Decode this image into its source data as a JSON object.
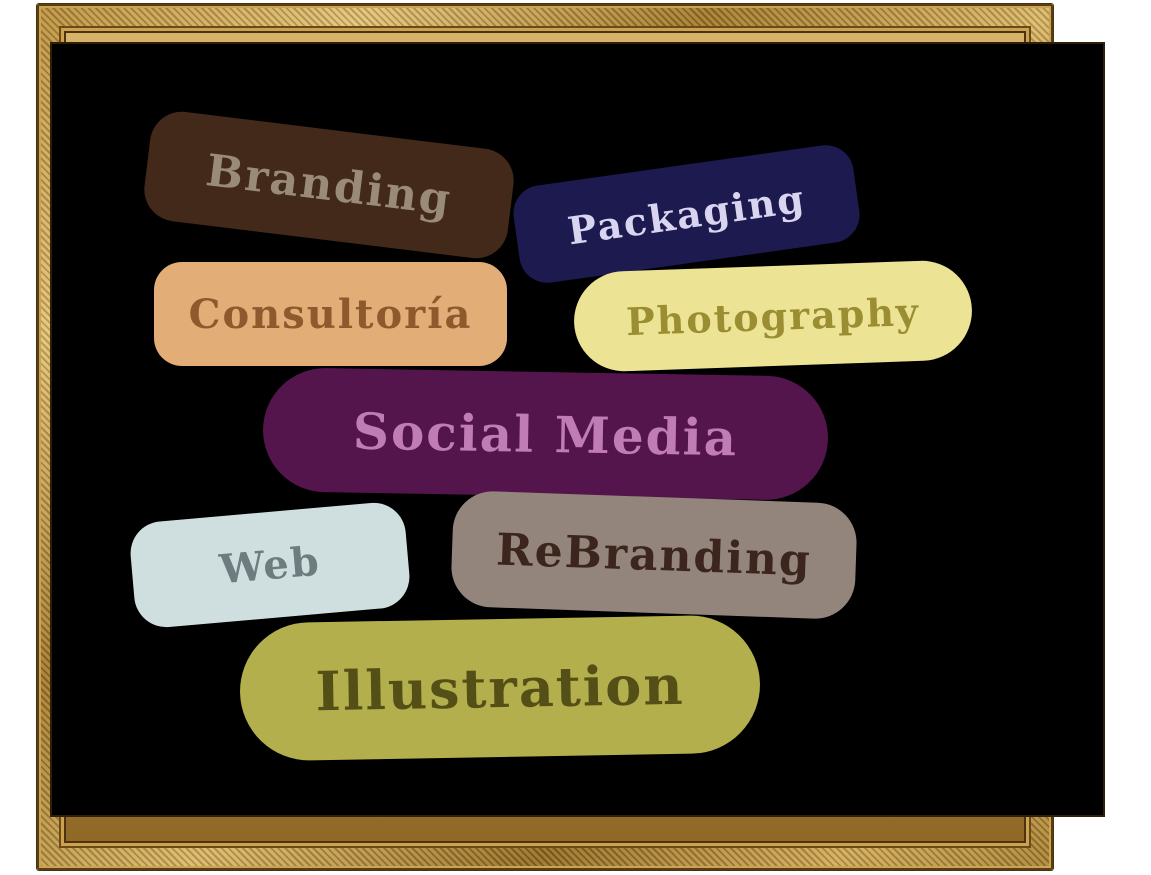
{
  "tags": {
    "branding": {
      "label": "Branding",
      "bg": "#432919",
      "fg": "#9a8a78"
    },
    "packaging": {
      "label": "Packaging",
      "bg": "#1c1a4f",
      "fg": "#d9d4ef"
    },
    "consultoria": {
      "label": "Consultoría",
      "bg": "#e2ad77",
      "fg": "#8e5a2d"
    },
    "photography": {
      "label": "Photography",
      "bg": "#ede394",
      "fg": "#9a8d32"
    },
    "social_media": {
      "label": "Social Media",
      "bg": "#54154c",
      "fg": "#c07cb5"
    },
    "web": {
      "label": "Web",
      "bg": "#cfdfdf",
      "fg": "#6c7c7f"
    },
    "rebranding": {
      "label": "ReBranding",
      "bg": "#93857c",
      "fg": "#3c251c"
    },
    "illustration": {
      "label": "Illustration",
      "bg": "#b3af4d",
      "fg": "#544e17"
    }
  },
  "frame": {
    "style": "ornate-gold-frame",
    "canvas_color": "#000000"
  }
}
